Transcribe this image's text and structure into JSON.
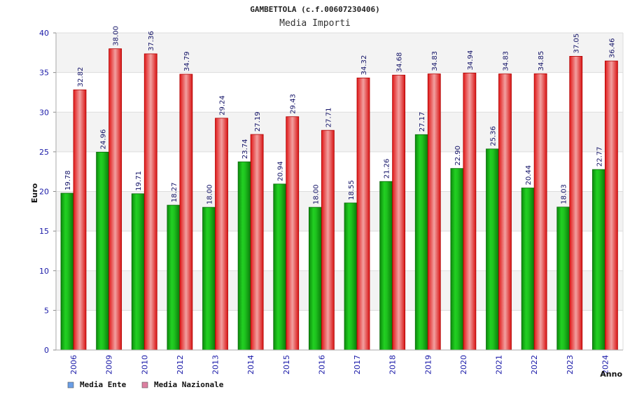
{
  "chart_data": {
    "type": "bar",
    "title": "GAMBETTOLA (c.f.00607230406)",
    "subtitle": "Media Importi",
    "xlabel": "Anno",
    "ylabel": "Euro",
    "ylim": [
      0,
      40
    ],
    "yticks": [
      0,
      5,
      10,
      15,
      20,
      25,
      30,
      35,
      40
    ],
    "categories": [
      "2006",
      "2009",
      "2010",
      "2012",
      "2013",
      "2014",
      "2015",
      "2016",
      "2017",
      "2018",
      "2019",
      "2020",
      "2021",
      "2022",
      "2023",
      "2024"
    ],
    "series": [
      {
        "name": "Media Ente",
        "color": "#11b511",
        "values": [
          19.78,
          24.96,
          19.71,
          18.27,
          18.0,
          23.74,
          20.94,
          18.0,
          18.55,
          21.26,
          27.17,
          22.9,
          25.36,
          20.44,
          18.03,
          22.77
        ],
        "labels": [
          "19.78",
          "24.96",
          "19.71",
          "18.27",
          "18.00",
          "23.74",
          "20.94",
          "18.00",
          "18.55",
          "21.26",
          "27.17",
          "22.90",
          "25.36",
          "20.44",
          "18.03",
          "22.77"
        ]
      },
      {
        "name": "Media Nazionale",
        "color": "#e01a1a",
        "values": [
          32.82,
          38.0,
          37.36,
          34.79,
          29.24,
          27.19,
          29.43,
          27.71,
          34.32,
          34.68,
          34.83,
          34.94,
          34.83,
          34.85,
          37.05,
          36.46
        ],
        "labels": [
          "32.82",
          "38.00",
          "37.36",
          "34.79",
          "29.24",
          "27.19",
          "29.43",
          "27.71",
          "34.32",
          "34.68",
          "34.83",
          "34.94",
          "34.83",
          "34.85",
          "37.05",
          "36.46"
        ]
      }
    ],
    "legend_position": "bottom-left",
    "legend": [
      {
        "label": "Media Ente",
        "color": "#6a9ee6"
      },
      {
        "label": "Media Nazionale",
        "color": "#dc7fa0"
      }
    ],
    "grid": true
  }
}
